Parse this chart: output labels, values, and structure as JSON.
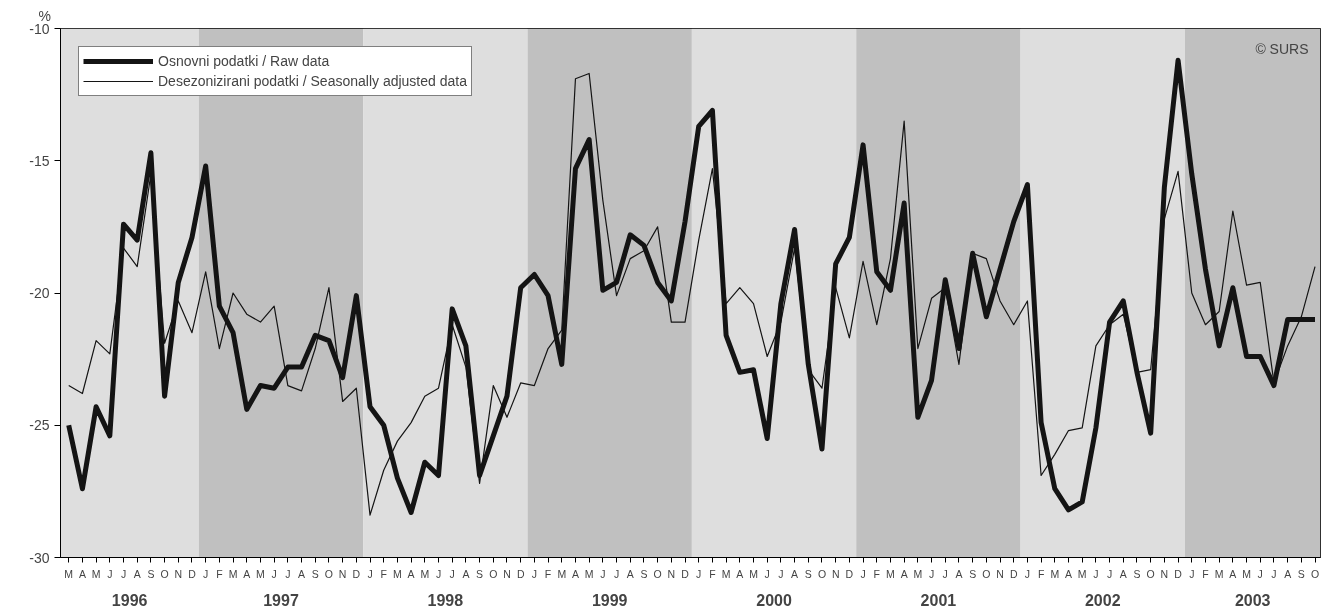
{
  "chart_data": {
    "type": "line",
    "ylabel": "%",
    "categories": [
      "M",
      "A",
      "M",
      "J",
      "J",
      "A",
      "S",
      "O",
      "N",
      "D",
      "J",
      "F",
      "M",
      "A",
      "M",
      "J",
      "J",
      "A",
      "S",
      "O",
      "N",
      "D",
      "J",
      "F",
      "M",
      "A",
      "M",
      "J",
      "J",
      "A",
      "S",
      "O",
      "N",
      "D",
      "J",
      "F",
      "M",
      "A",
      "M",
      "J",
      "J",
      "A",
      "S",
      "O",
      "N",
      "D",
      "J",
      "F",
      "M",
      "A",
      "M",
      "J",
      "J",
      "A",
      "S",
      "O",
      "N",
      "D",
      "J",
      "F",
      "M",
      "A",
      "M",
      "J",
      "J",
      "A",
      "S",
      "O",
      "N",
      "D",
      "J",
      "F",
      "M",
      "A",
      "M",
      "J",
      "J",
      "A",
      "S",
      "O",
      "N",
      "D",
      "J",
      "F",
      "M",
      "A",
      "M",
      "J",
      "J",
      "A",
      "S",
      "O"
    ],
    "series": [
      {
        "name": "Osnovni podatki / Raw data",
        "color": "#141414",
        "values": [
          -25.0,
          -27.4,
          -24.3,
          -25.4,
          -17.4,
          -18.0,
          -14.7,
          -23.9,
          -19.6,
          -17.9,
          -15.2,
          -20.5,
          -21.5,
          -24.4,
          -23.5,
          -23.6,
          -22.8,
          -22.8,
          -21.6,
          -21.8,
          -23.2,
          -20.1,
          -24.3,
          -25.0,
          -27.0,
          -28.3,
          -26.4,
          -26.9,
          -20.6,
          -22.0,
          -26.9,
          -25.4,
          -23.9,
          -19.8,
          -19.3,
          -20.1,
          -22.7,
          -15.3,
          -14.2,
          -19.9,
          -19.6,
          -17.8,
          -18.2,
          -19.6,
          -20.3,
          -17.3,
          -13.7,
          -13.1,
          -21.6,
          -23.0,
          -22.9,
          -25.5,
          -20.4,
          -17.6,
          -22.7,
          -25.9,
          -18.9,
          -17.9,
          -14.4,
          -19.2,
          -19.9,
          -16.6,
          -24.7,
          -23.3,
          -19.5,
          -22.1,
          -18.5,
          -20.9,
          -19.1,
          -17.3,
          -15.9,
          -24.9,
          -27.4,
          -28.2,
          -27.9,
          -25.1,
          -21.1,
          -20.3,
          -23.0,
          -25.3,
          -16.0,
          -11.2,
          -15.5,
          -19.1,
          -22.0,
          -19.8,
          -22.4,
          -22.4,
          -23.5,
          -21.0,
          -21.0,
          -21.0
        ]
      },
      {
        "name": "Desezonizirani podatki / Seasonally adjusted data",
        "color": "#141414",
        "values": [
          -23.5,
          -23.8,
          -21.8,
          -22.3,
          -18.3,
          -19.0,
          -15.5,
          -21.9,
          -20.3,
          -21.5,
          -19.2,
          -22.1,
          -20.0,
          -20.8,
          -21.1,
          -20.5,
          -23.5,
          -23.7,
          -22.1,
          -19.8,
          -24.1,
          -23.6,
          -28.4,
          -26.7,
          -25.6,
          -24.9,
          -23.9,
          -23.6,
          -21.2,
          -22.8,
          -27.2,
          -23.5,
          -24.7,
          -23.4,
          -23.5,
          -22.1,
          -21.4,
          -11.9,
          -11.7,
          -16.5,
          -20.1,
          -18.7,
          -18.4,
          -17.5,
          -21.1,
          -21.1,
          -18.0,
          -15.3,
          -20.4,
          -19.8,
          -20.4,
          -22.4,
          -21.1,
          -18.3,
          -22.9,
          -23.6,
          -19.8,
          -21.7,
          -18.8,
          -21.2,
          -18.7,
          -13.5,
          -22.1,
          -20.2,
          -19.8,
          -22.7,
          -18.5,
          -18.7,
          -20.3,
          -21.2,
          -20.3,
          -26.9,
          -26.1,
          -25.2,
          -25.1,
          -22.0,
          -21.2,
          -20.8,
          -23.0,
          -22.9,
          -17.2,
          -15.4,
          -20.0,
          -21.2,
          -20.7,
          -16.9,
          -19.7,
          -19.6,
          -23.4,
          -22.0,
          -20.9,
          -19.0
        ]
      }
    ],
    "ylim": [
      -30,
      -10
    ],
    "yticks": [
      -30,
      -25,
      -20,
      -15,
      -10
    ],
    "annotations": [
      "© SURS",
      "1996",
      "1997",
      "1998",
      "1999",
      "2000",
      "2001",
      "2002",
      "2003"
    ],
    "legend": "top left",
    "grid": false,
    "marker": "none",
    "line_style": "solid"
  }
}
